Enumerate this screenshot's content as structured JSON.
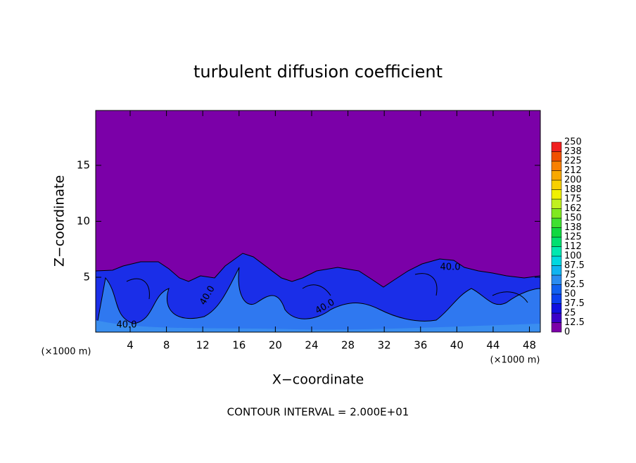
{
  "chart_data": {
    "type": "contour",
    "title": "turbulent diffusion coefficient",
    "x_label": "X−coordinate",
    "y_label": "Z−coordinate",
    "x_unit": "(×1000 m)",
    "x_unit_right": "(×1000 m)",
    "footnote": "CONTOUR INTERVAL = 2.000E+01",
    "xlim": [
      0.2,
      49.2
    ],
    "ylim": [
      0.1,
      19.9
    ],
    "xticks": [
      4,
      8,
      12,
      16,
      20,
      24,
      28,
      32,
      36,
      40,
      44,
      48
    ],
    "yticks": [
      5,
      10,
      15
    ],
    "contour_labels": [
      {
        "value": 40,
        "label": "40.0"
      },
      {
        "value": 40,
        "label": "40.0"
      },
      {
        "value": 40,
        "label": "40.0"
      },
      {
        "value": 40,
        "label": "40.0"
      }
    ],
    "colorbar": {
      "levels": [
        0,
        12.5,
        25,
        37.5,
        50,
        62.5,
        75,
        87.5,
        100,
        {
          "value": 112.5,
          "label": "112"
        },
        125,
        {
          "value": 137.5,
          "label": "138"
        },
        150,
        {
          "value": 162.5,
          "label": "162"
        },
        175,
        {
          "value": 187.5,
          "label": "188"
        },
        200,
        {
          "value": 212.5,
          "label": "212"
        },
        225,
        {
          "value": 237.5,
          "label": "238"
        },
        250
      ],
      "colors": [
        "#7b00a8",
        "#3a00c8",
        "#1010e0",
        "#0a40f0",
        "#1060f0",
        "#2a8cf0",
        "#10b4f0",
        "#00d8e0",
        "#00e8b0",
        "#00e070",
        "#10d840",
        "#40e030",
        "#80e820",
        "#c0f020",
        "#f0f000",
        "#f8d000",
        "#f8a800",
        "#f88000",
        "#f05000",
        "#f02020",
        "#f07878"
      ]
    }
  }
}
